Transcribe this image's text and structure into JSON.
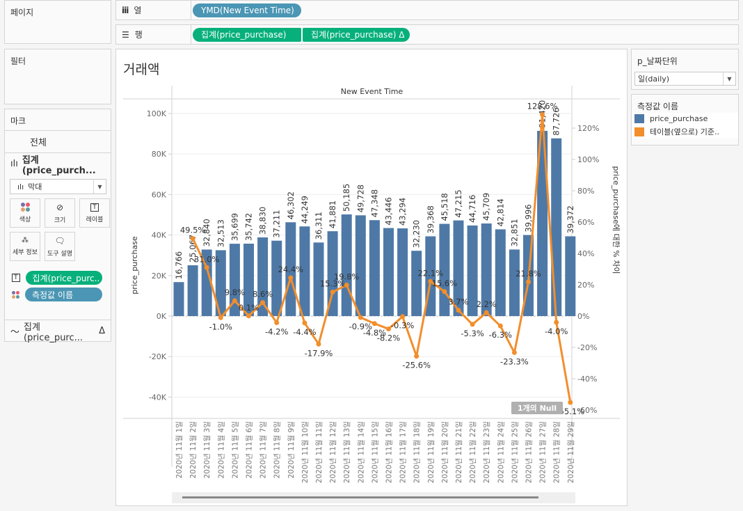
{
  "shelves": {
    "pages_label": "페이지",
    "columns_label": "열",
    "columns_pill": "YMD(New Event Time)",
    "rows_label": "행",
    "rows_pills": [
      "집계(price_purchase)",
      "집계(price_purchase)  Δ"
    ]
  },
  "filters": {
    "title": "필터"
  },
  "marks": {
    "title": "마크",
    "all_label": "전체",
    "bar_section_label": "집계(price_purch...",
    "mark_type": "막대",
    "buttons": [
      "색상",
      "크기",
      "레이블",
      "세부 정보",
      "도구 설명"
    ],
    "label_pill": "집계(price_purc..",
    "color_pill": "측정값 이름",
    "line_section_label": "집계(price_purc...",
    "delta_symbol": "Δ"
  },
  "parameter": {
    "title": "p_날짜단위",
    "value": "일(daily)"
  },
  "legend": {
    "title": "측정값 이름",
    "items": [
      {
        "label": "price_purchase",
        "color": "#4e79a7"
      },
      {
        "label": "테이블(옆으로) 기준..",
        "color": "#f28e2b"
      }
    ]
  },
  "worksheet": {
    "title": "거래액",
    "null_badge": "1개의 Null"
  },
  "chart_data": {
    "type": "bar",
    "title": "거래액",
    "header": "New Event Time",
    "xlabel": "",
    "ylabel": "price_purchase",
    "y2label": "price_purchase에 대한 % 차이",
    "ylim": [
      -45000,
      106000
    ],
    "y2lim": [
      -61,
      136
    ],
    "yticks": [
      100000,
      80000,
      60000,
      40000,
      20000,
      0,
      -20000,
      -40000
    ],
    "ytick_labels": [
      "100K",
      "80K",
      "60K",
      "40K",
      "20K",
      "0K",
      "-20K",
      "-40K"
    ],
    "y2ticks": [
      120,
      100,
      80,
      60,
      40,
      20,
      0,
      -20,
      -40,
      -60
    ],
    "y2tick_labels": [
      "120%",
      "100%",
      "80%",
      "60%",
      "40%",
      "20%",
      "0%",
      "-20%",
      "-40%",
      "-60%"
    ],
    "grid": true,
    "categories": [
      "2020년 11월 1일",
      "2020년 11월 2일",
      "2020년 11월 3일",
      "2020년 11월 4일",
      "2020년 11월 5일",
      "2020년 11월 6일",
      "2020년 11월 7일",
      "2020년 11월 8일",
      "2020년 11월 9일",
      "2020년 11월 10일",
      "2020년 11월 11일",
      "2020년 11월 12일",
      "2020년 11월 13일",
      "2020년 11월 14일",
      "2020년 11월 15일",
      "2020년 11월 16일",
      "2020년 11월 17일",
      "2020년 11월 18일",
      "2020년 11월 19일",
      "2020년 11월 20일",
      "2020년 11월 21일",
      "2020년 11월 22일",
      "2020년 11월 23일",
      "2020년 11월 24일",
      "2020년 11월 25일",
      "2020년 11월 26일",
      "2020년 11월 27일",
      "2020년 11월 28일",
      "2020년 11월 29일"
    ],
    "series": [
      {
        "name": "price_purchase",
        "type": "bar",
        "axis": "left",
        "color": "#4e79a7",
        "values": [
          16766,
          25067,
          32840,
          32513,
          35699,
          35742,
          38830,
          37211,
          46302,
          44249,
          36311,
          41881,
          50185,
          49728,
          47348,
          43446,
          43294,
          32230,
          39368,
          45518,
          47215,
          44716,
          45709,
          42814,
          32851,
          39996,
          91420,
          87726,
          39372
        ],
        "labels": [
          "16,766",
          "25,067",
          "32,840",
          "32,513",
          "35,699",
          "35,742",
          "38,830",
          "37,211",
          "46,302",
          "44,249",
          "36,311",
          "41,881",
          "50,185",
          "49,728",
          "47,348",
          "43,446",
          "43,294",
          "32,230",
          "39,368",
          "45,518",
          "47,215",
          "44,716",
          "45,709",
          "42,814",
          "32,851",
          "39,996",
          "91,420",
          "87,726",
          "39,372"
        ]
      },
      {
        "name": "테이블(옆으로) 기준 price_purchase에 대한 % 차이",
        "type": "line",
        "axis": "right",
        "color": "#f28e2b",
        "values": [
          null,
          49.5,
          31.0,
          -1.0,
          9.8,
          0.1,
          8.6,
          -4.2,
          24.4,
          -4.4,
          -17.9,
          15.3,
          19.8,
          -0.9,
          -4.8,
          -8.2,
          -0.3,
          -25.6,
          22.1,
          15.6,
          3.7,
          -5.3,
          2.2,
          -6.3,
          -23.3,
          21.8,
          128.6,
          -4.0,
          -55.1
        ],
        "labels": [
          null,
          "49.5%",
          "31.0%",
          "-1.0%",
          "9.8%",
          "0.1%",
          "8.6%",
          "-4.2%",
          "24.4%",
          "-4.4%",
          "-17.9%",
          "15.3%",
          "19.8%",
          "-0.9%",
          "-4.8%",
          "-8.2%",
          "-0.3%",
          "-25.6%",
          "22.1%",
          "15.6%",
          "3.7%",
          "-5.3%",
          "2.2%",
          "-6.3%",
          "-23.3%",
          "21.8%",
          "128.6%",
          "-4.0%",
          "-55.1%"
        ]
      }
    ],
    "legend_position": "right"
  }
}
